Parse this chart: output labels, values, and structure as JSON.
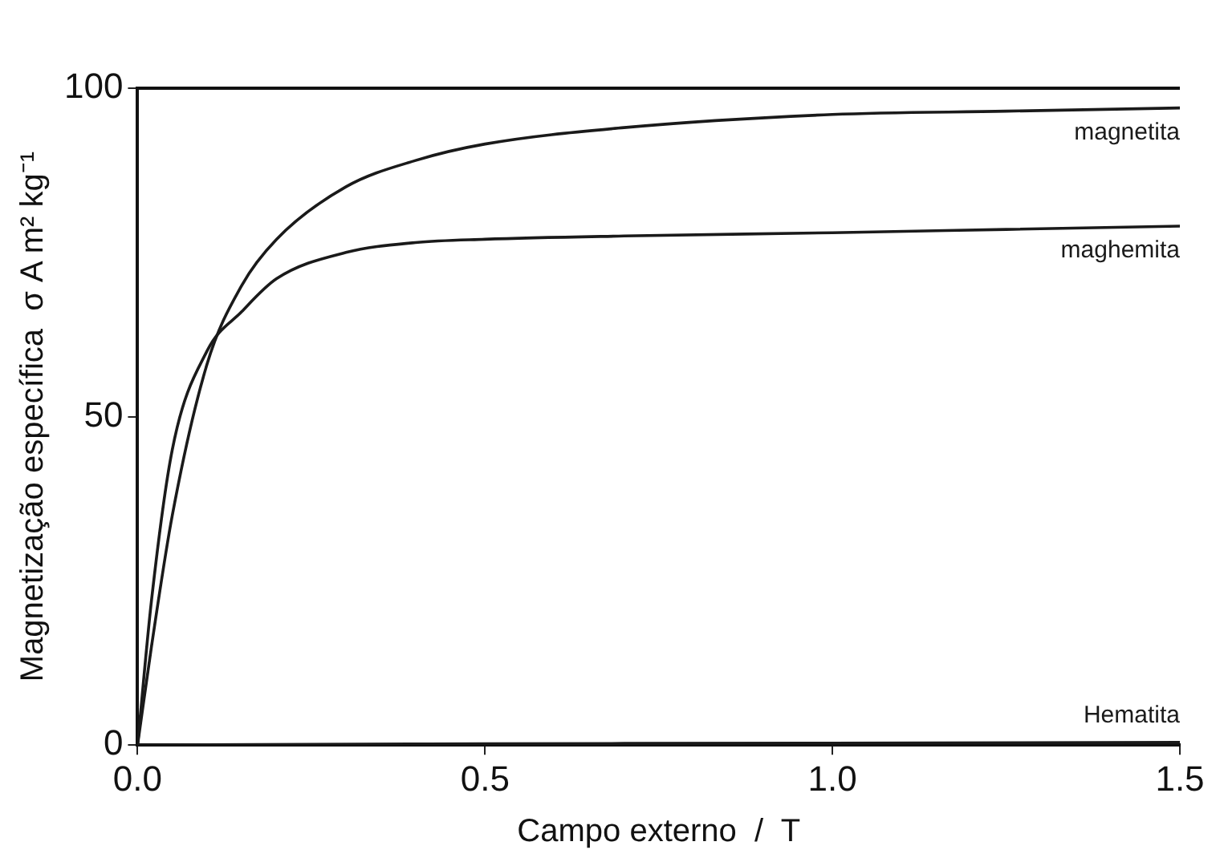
{
  "chart_data": {
    "type": "line",
    "xlabel": "Campo externo  /  T",
    "ylabel": "Magnetização específica  σ A m² kg⁻¹",
    "xlim": [
      0,
      1.5
    ],
    "ylim": [
      0,
      100
    ],
    "xticks": [
      {
        "value": 0,
        "label": "0.0"
      },
      {
        "value": 0.5,
        "label": "0.5"
      },
      {
        "value": 1,
        "label": "1.0"
      },
      {
        "value": 1.5,
        "label": "1.5"
      }
    ],
    "yticks": [
      0,
      50,
      100
    ],
    "grid": false,
    "legend": false,
    "marker": "none",
    "line_style": "solid",
    "series": [
      {
        "name": "magnetita",
        "color": "#1a1a1a",
        "x": [
          0,
          0.02,
          0.05,
          0.1,
          0.15,
          0.2,
          0.3,
          0.4,
          0.5,
          0.7,
          1.0,
          1.25,
          1.5
        ],
        "values": [
          0,
          15,
          35,
          58,
          70,
          77,
          85,
          89,
          91.5,
          94,
          96,
          96.5,
          97
        ]
      },
      {
        "name": "maghemita",
        "color": "#1a1a1a",
        "x": [
          0,
          0.02,
          0.05,
          0.1,
          0.15,
          0.2,
          0.3,
          0.4,
          0.5,
          0.7,
          1.0,
          1.25,
          1.5
        ],
        "values": [
          0,
          22,
          45,
          60,
          66,
          71,
          75,
          76.5,
          77,
          77.5,
          78,
          78.5,
          79
        ]
      },
      {
        "name": "Hematita",
        "color": "#1a1a1a",
        "x": [
          0,
          0.5,
          1.0,
          1.5
        ],
        "values": [
          0,
          0.2,
          0.3,
          0.4
        ]
      }
    ]
  }
}
